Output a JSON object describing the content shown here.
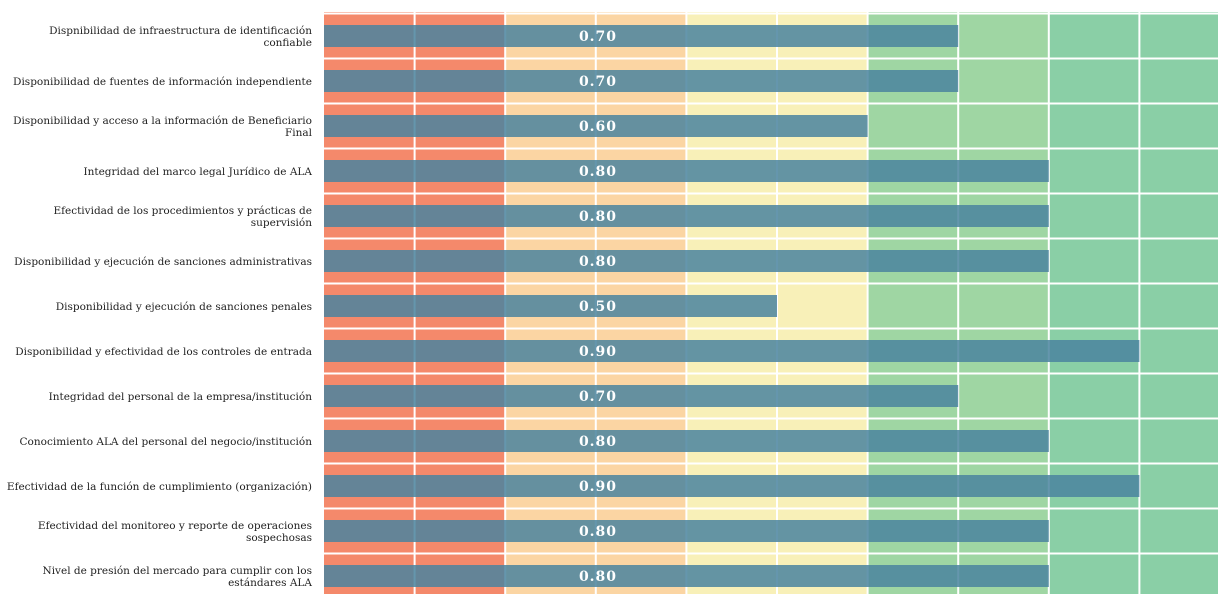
{
  "chart_data": {
    "type": "bar",
    "orientation": "horizontal",
    "xlim": [
      0,
      1
    ],
    "grid": true,
    "background_bands": [
      {
        "from": 0.0,
        "to": 0.2,
        "color": "#f4896b"
      },
      {
        "from": 0.2,
        "to": 0.4,
        "color": "#fbd5a3"
      },
      {
        "from": 0.4,
        "to": 0.6,
        "color": "#f8f0b8"
      },
      {
        "from": 0.6,
        "to": 0.8,
        "color": "#9fd6a3"
      },
      {
        "from": 0.8,
        "to": 1.0,
        "color": "#8acfa6"
      }
    ],
    "bar_color": "#4a849f",
    "categories": [
      "Dispnibilidad de infraestructura de identificación confiable",
      "Disponibilidad de fuentes de información independiente",
      "Disponibilidad y acceso a la información de Beneficiario Final",
      "Integridad del marco legal Jurídico de ALA",
      "Efectividad de los procedimientos y prácticas de supervisión",
      "Disponibilidad y ejecución de sanciones administrativas",
      "Disponibilidad y ejecución de sanciones penales",
      "Disponibilidad y efectividad de los controles de entrada",
      "Integridad del personal de la empresa/institución",
      "Conocimiento ALA del personal del negocio/institución",
      "Efectividad de la función de cumplimiento (organización)",
      "Efectividad del monitoreo y reporte de operaciones sospechosas",
      "Nivel de presión del mercado para cumplir con los estándares ALA"
    ],
    "category_lines": [
      [
        "Dispnibilidad de infraestructura de identificación",
        "confiable"
      ],
      [
        "Disponibilidad de fuentes de información independiente"
      ],
      [
        "Disponibilidad y acceso a la información de Beneficiario",
        "Final"
      ],
      [
        "Integridad del marco legal Jurídico de ALA"
      ],
      [
        "Efectividad de los procedimientos y prácticas de",
        "supervisión"
      ],
      [
        "Disponibilidad y ejecución de sanciones administrativas"
      ],
      [
        "Disponibilidad y ejecución de sanciones penales"
      ],
      [
        "Disponibilidad y efectividad de los controles de entrada"
      ],
      [
        "Integridad del personal de la empresa/institución"
      ],
      [
        "Conocimiento ALA del personal del negocio/institución"
      ],
      [
        "Efectividad de la función de cumplimiento (organización)"
      ],
      [
        "Efectividad del monitoreo y reporte de operaciones",
        "sospechosas"
      ],
      [
        "Nivel de presión del mercado para cumplir con los",
        "estándares ALA"
      ]
    ],
    "values": [
      0.7,
      0.7,
      0.6,
      0.8,
      0.8,
      0.8,
      0.5,
      0.9,
      0.7,
      0.8,
      0.9,
      0.8,
      0.8
    ],
    "value_labels": [
      "0.70",
      "0.70",
      "0.60",
      "0.80",
      "0.80",
      "0.80",
      "0.50",
      "0.90",
      "0.70",
      "0.80",
      "0.90",
      "0.80",
      "0.80"
    ]
  }
}
